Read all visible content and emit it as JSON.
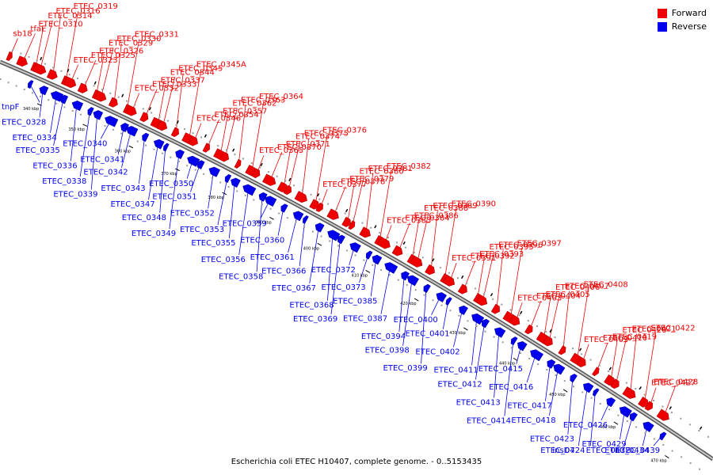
{
  "colors": {
    "forward": "#ee0000",
    "reverse": "#0000ee",
    "backbone": "#888888",
    "tick": "#000000"
  },
  "legend": {
    "forward": "Forward",
    "reverse": "Reverse"
  },
  "caption": "Escherichia coli ETEC H10407, complete genome. - 0..5153435",
  "scale_labels": [
    "340 kbp",
    "350 kbp",
    "360 kbp",
    "370 kbp",
    "380 kbp",
    "390 kbp",
    "400 kbp",
    "410 kbp",
    "420 kbp",
    "430 kbp",
    "440 kbp",
    "450 kbp",
    "460 kbp",
    "470 kbp"
  ],
  "forward_labels": [
    "sb18",
    "tfaE",
    "ETEC_0310",
    "ETEC_0314",
    "ETEC_0316",
    "ETEC_0319",
    "ETEC_0323",
    "ETEC_0325",
    "ETEC_0326",
    "ETEC_0329",
    "ETEC_0330",
    "ETEC_0331",
    "ETEC_0332",
    "ETEC_0333",
    "ETEC_0337",
    "ETEC_0344",
    "ETEC_0345",
    "ETEC_0345A",
    "ETEC_0346",
    "ETEC_0354",
    "ETEC_0357",
    "ETEC_0362",
    "ETEC_0363",
    "ETEC_0364",
    "ETEC_0365",
    "ETEC_0370",
    "ETEC_0371",
    "ETEC_0374",
    "ETEC_0375",
    "ETEC_0376",
    "ETEC_0377",
    "ETEC_0378",
    "ETEC_0379",
    "ETEC_0380",
    "ETEC_0381",
    "ETEC_0382",
    "ETEC_0383",
    "ETEC_0384",
    "ETEC_0386",
    "ETEC_0388",
    "ETEC_0389",
    "ETEC_0390",
    "ETEC_0391",
    "ETEC_0392",
    "ETEC_0393",
    "ETEC_0395",
    "ETEC_0396",
    "ETEC_0397",
    "ETEC_0403",
    "ETEC_0404",
    "ETEC_0405",
    "ETEC_0406",
    "ETEC_0407",
    "ETEC_0408",
    "ETEC_0409",
    "ETEC_0410",
    "ETEC_0419",
    "ETEC_0420",
    "ETEC_0421",
    "ETEC_0422",
    "ETEC_0427",
    "ETEC_0428"
  ],
  "reverse_labels": [
    "tnpF",
    "ETEC_0328",
    "ETEC_0334",
    "ETEC_0335",
    "ETEC_0336",
    "ETEC_0338",
    "ETEC_0339",
    "ETEC_0340",
    "ETEC_0341",
    "ETEC_0342",
    "ETEC_0343",
    "ETEC_0347",
    "ETEC_0348",
    "ETEC_0349",
    "ETEC_0350",
    "ETEC_0351",
    "ETEC_0352",
    "ETEC_0353",
    "ETEC_0355",
    "ETEC_0356",
    "ETEC_0358",
    "ETEC_0359",
    "ETEC_0360",
    "ETEC_0361",
    "ETEC_0366",
    "ETEC_0367",
    "ETEC_0368",
    "ETEC_0369",
    "ETEC_0372",
    "ETEC_0373",
    "ETEC_0385",
    "ETEC_0387",
    "ETEC_0394",
    "ETEC_0398",
    "ETEC_0399",
    "ETEC_0400",
    "ETEC_0401",
    "ETEC_0402",
    "ETEC_0411",
    "ETEC_0412",
    "ETEC_0413",
    "ETEC_0414",
    "ETEC_0415",
    "ETEC_0416",
    "ETEC_0417",
    "ETEC_0418",
    "ETEC_0423",
    "ETEC_0424",
    "insD7",
    "ETEC_0426",
    "ETEC_0429",
    "ETEC_0432",
    "ETEC_0434",
    "ETEC_0439"
  ]
}
